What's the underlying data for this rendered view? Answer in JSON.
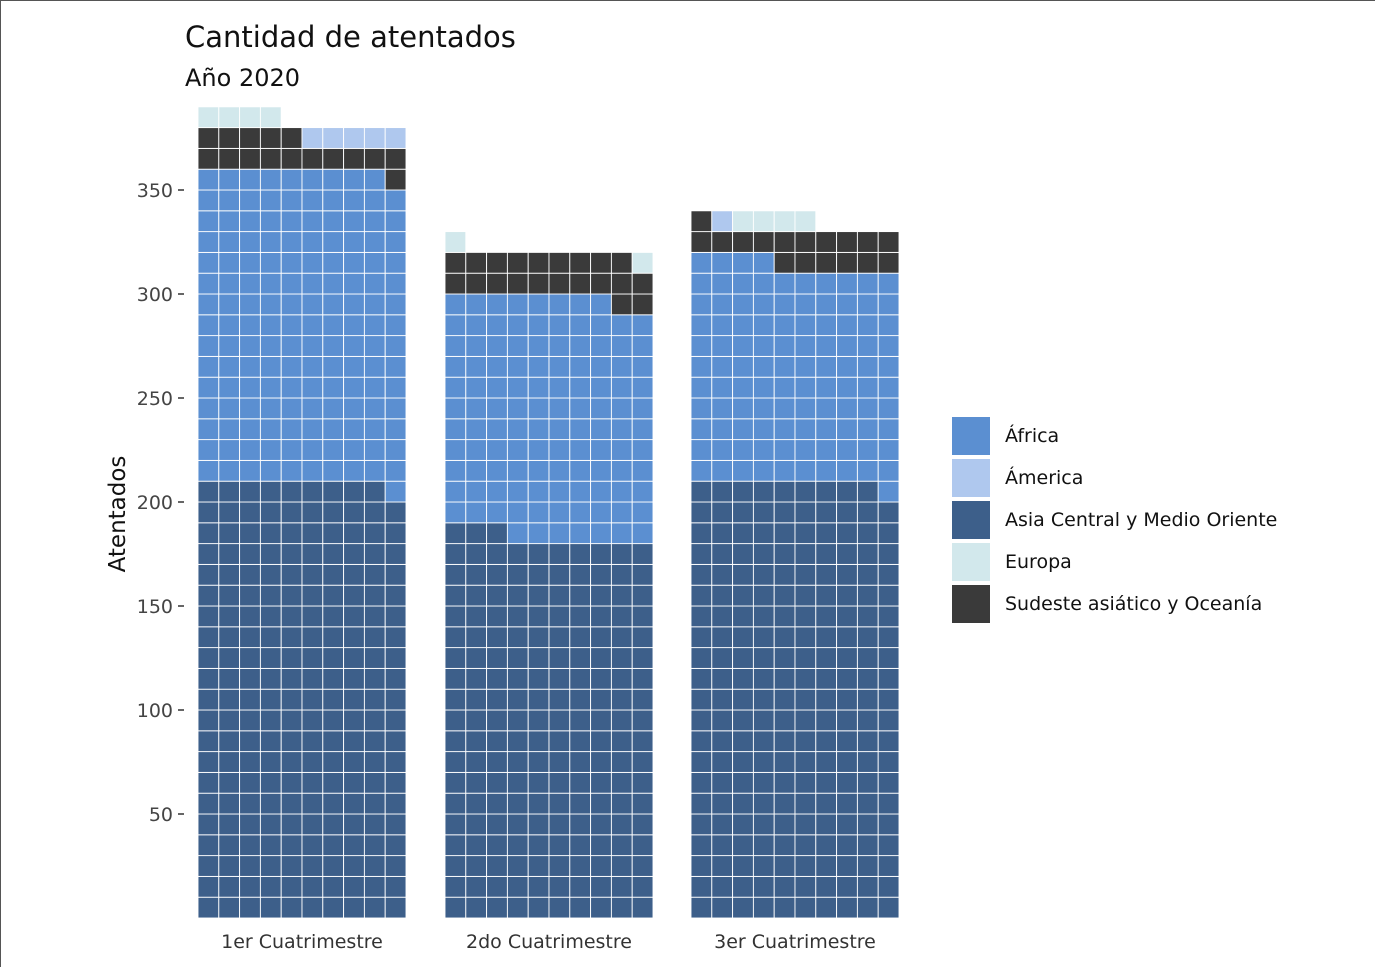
{
  "chart_data": {
    "type": "bar",
    "subtype": "waffle",
    "title": "Cantidad de atentados",
    "subtitle": "Año 2020",
    "xlabel": "",
    "ylabel": "Atentados",
    "ylim": [
      0,
      392
    ],
    "yticks": [
      50,
      100,
      150,
      200,
      250,
      300,
      350
    ],
    "legend_position": "right",
    "categories": [
      "1er Cuatrimestre",
      "2do Cuatrimestre",
      "3er Cuatrimestre"
    ],
    "series": [
      {
        "name": "Asia Central y Medio Oriente",
        "color": "#3d5f8a",
        "values": [
          209,
          183,
          209
        ]
      },
      {
        "name": "África",
        "color": "#5b8fd1",
        "values": [
          150,
          115,
          105
        ]
      },
      {
        "name": "Sudeste asiático y Oceanía",
        "color": "#3a3a3a",
        "values": [
          16,
          21,
          17
        ]
      },
      {
        "name": "Ámerica",
        "color": "#afc8ee",
        "values": [
          5,
          0,
          1
        ]
      },
      {
        "name": "Europa",
        "color": "#d2e8ec",
        "values": [
          4,
          2,
          4
        ]
      }
    ],
    "legend_order": [
      "África",
      "Ámerica",
      "Asia Central y Medio Oriente",
      "Europa",
      "Sudeste asiático y Oceanía"
    ]
  }
}
